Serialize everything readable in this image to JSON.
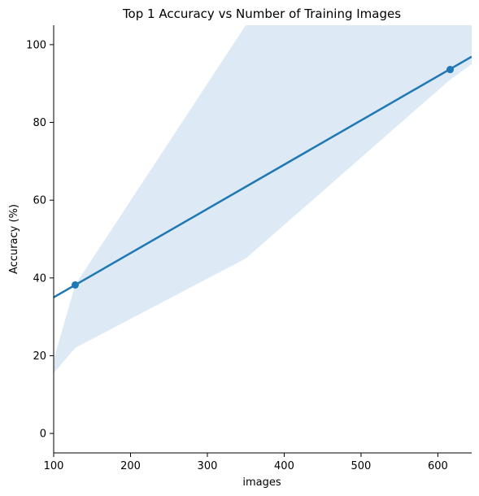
{
  "chart_data": {
    "type": "scatter",
    "title": "Top 1 Accuracy vs Number of Training Images",
    "xlabel": "images",
    "ylabel": "Accuracy (%)",
    "xlim": [
      100,
      644
    ],
    "ylim": [
      -5,
      105
    ],
    "xticks": [
      100,
      200,
      300,
      400,
      500,
      600
    ],
    "yticks": [
      0,
      20,
      40,
      60,
      80,
      100
    ],
    "grid": false,
    "points": [
      {
        "x": 128,
        "y": 38.2
      },
      {
        "x": 616,
        "y": 93.6
      }
    ],
    "regression": {
      "x": [
        100,
        644
      ],
      "y": [
        35.0,
        96.9
      ]
    },
    "confidence_band": {
      "x": [
        100,
        128,
        350,
        616,
        644
      ],
      "upper": [
        19.0,
        38.2,
        105,
        105,
        105
      ],
      "lower": [
        15.5,
        22.0,
        45.0,
        91.0,
        95.0
      ]
    },
    "colors": {
      "line": "#1f77b4",
      "band": "#dde9f4"
    }
  }
}
